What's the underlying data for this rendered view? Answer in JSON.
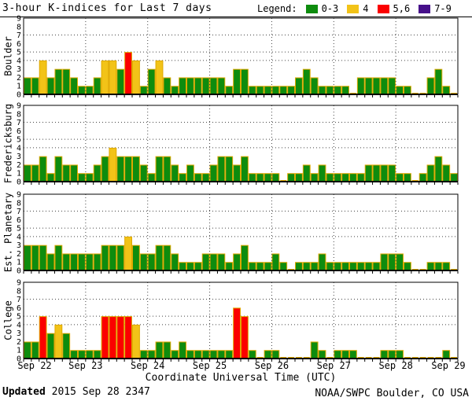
{
  "header": {
    "title": "3-hour K-indices for Last 7 days",
    "legend_label": "Legend:",
    "legend_items": [
      {
        "label": "0-3",
        "color_key": "green"
      },
      {
        "label": "4",
        "color_key": "yellow"
      },
      {
        "label": "5,6",
        "color_key": "red"
      },
      {
        "label": "7-9",
        "color_key": "purple"
      }
    ]
  },
  "footer": {
    "updated_label": "Updated",
    "updated_value": "2015 Sep 28 2347",
    "credit": "NOAA/SWPC Boulder, CO USA"
  },
  "chart_data": {
    "type": "bar",
    "title": "3-hour K-indices for Last 7 days",
    "xlabel": "Coordinate Universal Time (UTC)",
    "x_tick_labels": [
      "Sep 22",
      "Sep 23",
      "Sep 24",
      "Sep 25",
      "Sep 26",
      "Sep 27",
      "Sep 28",
      "Sep 29"
    ],
    "y_ticks": [
      0,
      1,
      2,
      3,
      4,
      5,
      6,
      7,
      8,
      9
    ],
    "ylim": [
      0,
      9
    ],
    "gridlines_y": [
      4,
      5,
      7
    ],
    "bars_per_day": 8,
    "hours_per_bar": 3,
    "legend_position": "top-right",
    "colors": {
      "green": "#0E8C0E",
      "yellow": "#F2C318",
      "red": "#FB0000",
      "purple": "#46108A",
      "bar_outline": "#DFA800"
    },
    "series": [
      {
        "name": "Boulder",
        "values": [
          2,
          2,
          4,
          2,
          3,
          3,
          2,
          1,
          1,
          2,
          4,
          4,
          3,
          5,
          4,
          1,
          3,
          4,
          2,
          1,
          2,
          2,
          2,
          2,
          2,
          2,
          1,
          3,
          3,
          1,
          1,
          1,
          1,
          1,
          1,
          2,
          3,
          2,
          1,
          1,
          1,
          1,
          0,
          2,
          2,
          2,
          2,
          2,
          1,
          1,
          0,
          0,
          2,
          3,
          1,
          0
        ]
      },
      {
        "name": "Fredericksburg",
        "values": [
          2,
          2,
          3,
          1,
          3,
          2,
          2,
          1,
          1,
          2,
          3,
          4,
          3,
          3,
          3,
          2,
          1,
          3,
          3,
          2,
          1,
          2,
          1,
          1,
          2,
          3,
          3,
          2,
          3,
          1,
          1,
          1,
          1,
          0,
          1,
          1,
          2,
          1,
          2,
          1,
          1,
          1,
          1,
          1,
          2,
          2,
          2,
          2,
          1,
          1,
          0,
          1,
          2,
          3,
          2,
          1
        ]
      },
      {
        "name": "Est. Planetary",
        "values": [
          3,
          3,
          3,
          2,
          3,
          2,
          2,
          2,
          2,
          2,
          3,
          3,
          3,
          4,
          3,
          2,
          2,
          3,
          3,
          2,
          1,
          1,
          1,
          2,
          2,
          2,
          1,
          2,
          3,
          1,
          1,
          1,
          2,
          1,
          0,
          1,
          1,
          1,
          2,
          1,
          1,
          1,
          1,
          1,
          1,
          1,
          2,
          2,
          2,
          1,
          0,
          0,
          1,
          1,
          1,
          0
        ]
      },
      {
        "name": "College",
        "values": [
          2,
          2,
          5,
          3,
          4,
          3,
          1,
          1,
          1,
          1,
          5,
          5,
          5,
          5,
          4,
          1,
          1,
          2,
          2,
          1,
          2,
          1,
          1,
          1,
          1,
          1,
          1,
          6,
          5,
          1,
          0,
          1,
          1,
          0,
          0,
          0,
          0,
          2,
          1,
          0,
          1,
          1,
          1,
          0,
          0,
          0,
          1,
          1,
          1,
          0,
          0,
          0,
          0,
          0,
          1,
          0
        ]
      }
    ]
  }
}
